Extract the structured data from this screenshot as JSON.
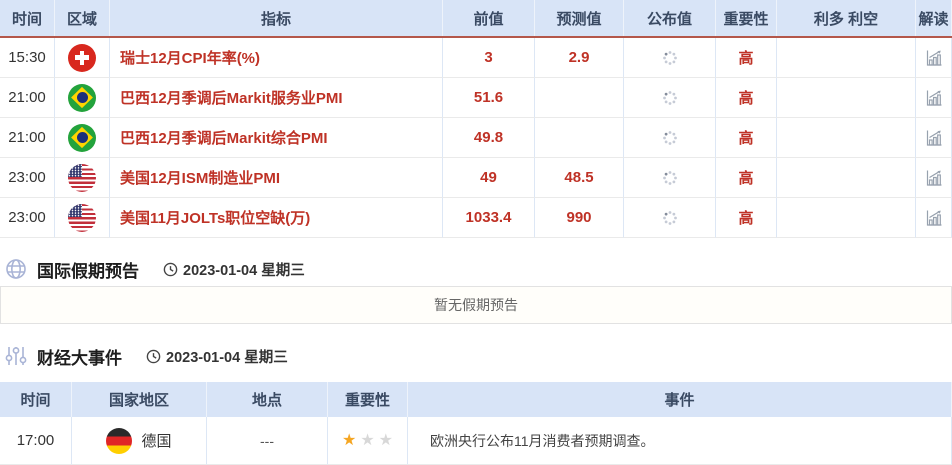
{
  "calendar_table": {
    "headers": [
      "时间",
      "区域",
      "指标",
      "前值",
      "预测值",
      "公布值",
      "重要性",
      "利多 利空",
      "解读"
    ],
    "rows": [
      {
        "time": "15:30",
        "region": "switzerland",
        "indicator": "瑞士12月CPI年率(%)",
        "previous": "3",
        "forecast": "2.9",
        "published": "",
        "importance": "高"
      },
      {
        "time": "21:00",
        "region": "brazil",
        "indicator": "巴西12月季调后Markit服务业PMI",
        "previous": "51.6",
        "forecast": "",
        "published": "",
        "importance": "高"
      },
      {
        "time": "21:00",
        "region": "brazil",
        "indicator": "巴西12月季调后Markit综合PMI",
        "previous": "49.8",
        "forecast": "",
        "published": "",
        "importance": "高"
      },
      {
        "time": "23:00",
        "region": "usa",
        "indicator": "美国12月ISM制造业PMI",
        "previous": "49",
        "forecast": "48.5",
        "published": "",
        "importance": "高"
      },
      {
        "time": "23:00",
        "region": "usa",
        "indicator": "美国11月JOLTs职位空缺(万)",
        "previous": "1033.4",
        "forecast": "990",
        "published": "",
        "importance": "高"
      }
    ]
  },
  "holiday_section": {
    "title": "国际假期预告",
    "date": "2023-01-04 星期三",
    "empty_message": "暂无假期预告"
  },
  "events_section": {
    "title": "财经大事件",
    "date": "2023-01-04 星期三",
    "table": {
      "headers": [
        "时间",
        "国家地区",
        "地点",
        "重要性",
        "事件"
      ],
      "rows": [
        {
          "time": "17:00",
          "flag": "germany",
          "country": "德国",
          "location": "---",
          "importance_stars": 1,
          "stars_total": 3,
          "event": "欧洲央行公布11月消费者预期调查。"
        }
      ]
    }
  },
  "colors": {
    "header_bg": "#d8e4f7",
    "header_text": "#3a4a63",
    "accent_line": "#b4574b",
    "value_red": "#bf3226",
    "star_gold": "#f5a623",
    "star_gray": "#d8d8d8",
    "section_icon": "#a9b4d6"
  }
}
